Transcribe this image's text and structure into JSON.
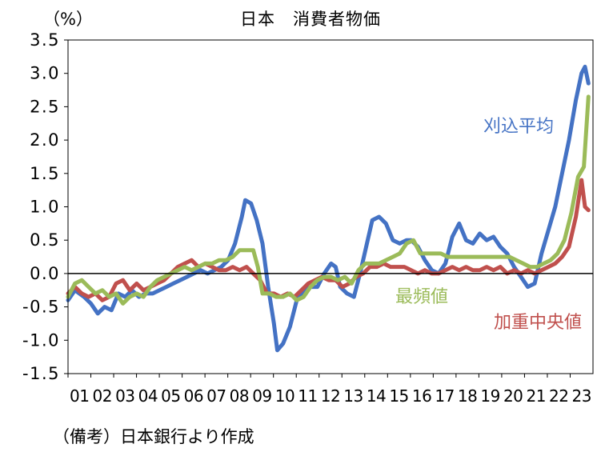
{
  "chart_data": {
    "type": "line",
    "title": "日本　消費者物価",
    "ylabel": "（%）",
    "source_note": "（備考）日本銀行より作成",
    "ylim": [
      -1.5,
      3.5
    ],
    "yticks": [
      "3.5",
      "3.0",
      "2.5",
      "2.0",
      "1.5",
      "1.0",
      "0.5",
      "0.0",
      "-0.5",
      "-1.0",
      "-1.5"
    ],
    "xlim": [
      2001,
      2023.95
    ],
    "xticks": [
      "01",
      "02",
      "03",
      "04",
      "05",
      "06",
      "07",
      "08",
      "09",
      "10",
      "11",
      "12",
      "13",
      "14",
      "15",
      "16",
      "17",
      "18",
      "19",
      "20",
      "21",
      "22",
      "23"
    ],
    "zero_line": true,
    "grid": false,
    "series": [
      {
        "name": "刈込平均",
        "color": "#4472C4",
        "points": [
          [
            2001.0,
            -0.4
          ],
          [
            2001.3,
            -0.25
          ],
          [
            2001.7,
            -0.35
          ],
          [
            2002.0,
            -0.45
          ],
          [
            2002.3,
            -0.6
          ],
          [
            2002.6,
            -0.5
          ],
          [
            2002.9,
            -0.55
          ],
          [
            2003.2,
            -0.3
          ],
          [
            2003.5,
            -0.35
          ],
          [
            2003.8,
            -0.25
          ],
          [
            2004.1,
            -0.35
          ],
          [
            2004.4,
            -0.3
          ],
          [
            2004.7,
            -0.3
          ],
          [
            2005.0,
            -0.25
          ],
          [
            2005.3,
            -0.2
          ],
          [
            2005.6,
            -0.15
          ],
          [
            2005.9,
            -0.1
          ],
          [
            2006.2,
            -0.05
          ],
          [
            2006.5,
            0.0
          ],
          [
            2006.8,
            0.05
          ],
          [
            2007.1,
            0.0
          ],
          [
            2007.4,
            0.05
          ],
          [
            2007.7,
            0.1
          ],
          [
            2008.0,
            0.2
          ],
          [
            2008.3,
            0.45
          ],
          [
            2008.6,
            0.85
          ],
          [
            2008.75,
            1.1
          ],
          [
            2009.0,
            1.05
          ],
          [
            2009.25,
            0.8
          ],
          [
            2009.5,
            0.45
          ],
          [
            2009.75,
            -0.2
          ],
          [
            2010.0,
            -0.75
          ],
          [
            2010.15,
            -1.15
          ],
          [
            2010.4,
            -1.05
          ],
          [
            2010.7,
            -0.8
          ],
          [
            2011.0,
            -0.4
          ],
          [
            2011.3,
            -0.25
          ],
          [
            2011.6,
            -0.2
          ],
          [
            2011.9,
            -0.2
          ],
          [
            2012.2,
            0.0
          ],
          [
            2012.5,
            0.15
          ],
          [
            2012.7,
            0.1
          ],
          [
            2012.9,
            -0.2
          ],
          [
            2013.2,
            -0.3
          ],
          [
            2013.5,
            -0.35
          ],
          [
            2013.8,
            0.05
          ],
          [
            2014.0,
            0.35
          ],
          [
            2014.3,
            0.8
          ],
          [
            2014.6,
            0.85
          ],
          [
            2014.9,
            0.75
          ],
          [
            2015.2,
            0.5
          ],
          [
            2015.5,
            0.45
          ],
          [
            2015.8,
            0.5
          ],
          [
            2016.0,
            0.5
          ],
          [
            2016.3,
            0.4
          ],
          [
            2016.6,
            0.2
          ],
          [
            2016.9,
            0.05
          ],
          [
            2017.2,
            0.0
          ],
          [
            2017.5,
            0.15
          ],
          [
            2017.8,
            0.55
          ],
          [
            2018.1,
            0.75
          ],
          [
            2018.4,
            0.5
          ],
          [
            2018.7,
            0.45
          ],
          [
            2019.0,
            0.6
          ],
          [
            2019.3,
            0.5
          ],
          [
            2019.6,
            0.55
          ],
          [
            2019.9,
            0.4
          ],
          [
            2020.2,
            0.3
          ],
          [
            2020.5,
            0.1
          ],
          [
            2020.8,
            -0.05
          ],
          [
            2021.1,
            -0.2
          ],
          [
            2021.4,
            -0.15
          ],
          [
            2021.7,
            0.3
          ],
          [
            2022.0,
            0.65
          ],
          [
            2022.3,
            1.0
          ],
          [
            2022.6,
            1.5
          ],
          [
            2022.9,
            2.0
          ],
          [
            2023.2,
            2.6
          ],
          [
            2023.45,
            3.0
          ],
          [
            2023.6,
            3.1
          ],
          [
            2023.75,
            2.85
          ]
        ]
      },
      {
        "name": "最頻値",
        "color": "#9BBB59",
        "points": [
          [
            2001.0,
            -0.35
          ],
          [
            2001.3,
            -0.15
          ],
          [
            2001.6,
            -0.1
          ],
          [
            2001.9,
            -0.2
          ],
          [
            2002.2,
            -0.3
          ],
          [
            2002.5,
            -0.25
          ],
          [
            2002.8,
            -0.35
          ],
          [
            2003.1,
            -0.3
          ],
          [
            2003.4,
            -0.45
          ],
          [
            2003.7,
            -0.35
          ],
          [
            2004.0,
            -0.3
          ],
          [
            2004.3,
            -0.35
          ],
          [
            2004.6,
            -0.2
          ],
          [
            2004.9,
            -0.1
          ],
          [
            2005.2,
            -0.05
          ],
          [
            2005.5,
            0.0
          ],
          [
            2005.8,
            0.05
          ],
          [
            2006.1,
            0.1
          ],
          [
            2006.4,
            0.05
          ],
          [
            2006.7,
            0.1
          ],
          [
            2007.0,
            0.15
          ],
          [
            2007.3,
            0.15
          ],
          [
            2007.6,
            0.2
          ],
          [
            2007.9,
            0.2
          ],
          [
            2008.2,
            0.25
          ],
          [
            2008.5,
            0.35
          ],
          [
            2008.8,
            0.35
          ],
          [
            2009.1,
            0.35
          ],
          [
            2009.3,
            0.1
          ],
          [
            2009.5,
            -0.3
          ],
          [
            2009.8,
            -0.3
          ],
          [
            2010.1,
            -0.35
          ],
          [
            2010.4,
            -0.35
          ],
          [
            2010.7,
            -0.3
          ],
          [
            2011.0,
            -0.4
          ],
          [
            2011.3,
            -0.35
          ],
          [
            2011.6,
            -0.2
          ],
          [
            2011.9,
            -0.1
          ],
          [
            2012.2,
            -0.05
          ],
          [
            2012.5,
            -0.05
          ],
          [
            2012.8,
            -0.1
          ],
          [
            2013.1,
            -0.05
          ],
          [
            2013.4,
            -0.15
          ],
          [
            2013.7,
            0.05
          ],
          [
            2014.0,
            0.15
          ],
          [
            2014.3,
            0.15
          ],
          [
            2014.6,
            0.15
          ],
          [
            2014.9,
            0.2
          ],
          [
            2015.2,
            0.25
          ],
          [
            2015.5,
            0.3
          ],
          [
            2015.8,
            0.45
          ],
          [
            2016.1,
            0.5
          ],
          [
            2016.4,
            0.3
          ],
          [
            2016.7,
            0.3
          ],
          [
            2017.0,
            0.3
          ],
          [
            2017.3,
            0.3
          ],
          [
            2017.6,
            0.25
          ],
          [
            2017.9,
            0.25
          ],
          [
            2018.2,
            0.25
          ],
          [
            2018.5,
            0.25
          ],
          [
            2018.8,
            0.25
          ],
          [
            2019.1,
            0.25
          ],
          [
            2019.4,
            0.25
          ],
          [
            2019.7,
            0.25
          ],
          [
            2020.0,
            0.25
          ],
          [
            2020.3,
            0.25
          ],
          [
            2020.6,
            0.2
          ],
          [
            2020.9,
            0.15
          ],
          [
            2021.2,
            0.1
          ],
          [
            2021.5,
            0.1
          ],
          [
            2021.8,
            0.15
          ],
          [
            2022.1,
            0.2
          ],
          [
            2022.4,
            0.3
          ],
          [
            2022.7,
            0.5
          ],
          [
            2023.0,
            0.9
          ],
          [
            2023.3,
            1.45
          ],
          [
            2023.55,
            1.6
          ],
          [
            2023.75,
            2.65
          ]
        ]
      },
      {
        "name": "加重中央値",
        "color": "#C0504D",
        "points": [
          [
            2001.0,
            -0.3
          ],
          [
            2001.3,
            -0.2
          ],
          [
            2001.6,
            -0.3
          ],
          [
            2001.9,
            -0.35
          ],
          [
            2002.2,
            -0.3
          ],
          [
            2002.5,
            -0.4
          ],
          [
            2002.8,
            -0.35
          ],
          [
            2003.1,
            -0.15
          ],
          [
            2003.4,
            -0.1
          ],
          [
            2003.7,
            -0.25
          ],
          [
            2004.0,
            -0.15
          ],
          [
            2004.3,
            -0.25
          ],
          [
            2004.6,
            -0.2
          ],
          [
            2004.9,
            -0.15
          ],
          [
            2005.2,
            -0.1
          ],
          [
            2005.5,
            0.0
          ],
          [
            2005.8,
            0.1
          ],
          [
            2006.1,
            0.15
          ],
          [
            2006.4,
            0.2
          ],
          [
            2006.7,
            0.1
          ],
          [
            2007.0,
            0.15
          ],
          [
            2007.3,
            0.1
          ],
          [
            2007.6,
            0.05
          ],
          [
            2007.9,
            0.05
          ],
          [
            2008.2,
            0.1
          ],
          [
            2008.5,
            0.05
          ],
          [
            2008.8,
            0.1
          ],
          [
            2009.1,
            0.0
          ],
          [
            2009.4,
            -0.1
          ],
          [
            2009.7,
            -0.3
          ],
          [
            2010.0,
            -0.3
          ],
          [
            2010.3,
            -0.35
          ],
          [
            2010.6,
            -0.3
          ],
          [
            2010.9,
            -0.35
          ],
          [
            2011.2,
            -0.25
          ],
          [
            2011.5,
            -0.15
          ],
          [
            2011.8,
            -0.1
          ],
          [
            2012.1,
            -0.05
          ],
          [
            2012.4,
            -0.1
          ],
          [
            2012.7,
            -0.1
          ],
          [
            2013.0,
            -0.2
          ],
          [
            2013.3,
            -0.15
          ],
          [
            2013.6,
            -0.05
          ],
          [
            2013.9,
            0.0
          ],
          [
            2014.2,
            0.1
          ],
          [
            2014.5,
            0.1
          ],
          [
            2014.8,
            0.15
          ],
          [
            2015.1,
            0.1
          ],
          [
            2015.4,
            0.1
          ],
          [
            2015.7,
            0.1
          ],
          [
            2016.0,
            0.05
          ],
          [
            2016.3,
            0.0
          ],
          [
            2016.6,
            0.05
          ],
          [
            2016.9,
            0.0
          ],
          [
            2017.2,
            0.0
          ],
          [
            2017.5,
            0.05
          ],
          [
            2017.8,
            0.1
          ],
          [
            2018.1,
            0.05
          ],
          [
            2018.4,
            0.1
          ],
          [
            2018.7,
            0.05
          ],
          [
            2019.0,
            0.05
          ],
          [
            2019.3,
            0.1
          ],
          [
            2019.6,
            0.05
          ],
          [
            2019.9,
            0.1
          ],
          [
            2020.2,
            0.0
          ],
          [
            2020.5,
            0.05
          ],
          [
            2020.8,
            0.0
          ],
          [
            2021.1,
            0.05
          ],
          [
            2021.4,
            0.0
          ],
          [
            2021.7,
            0.05
          ],
          [
            2022.0,
            0.1
          ],
          [
            2022.3,
            0.15
          ],
          [
            2022.6,
            0.25
          ],
          [
            2022.9,
            0.4
          ],
          [
            2023.2,
            0.85
          ],
          [
            2023.45,
            1.4
          ],
          [
            2023.6,
            1.0
          ],
          [
            2023.75,
            0.95
          ]
        ]
      }
    ],
    "series_labels": [
      "刈込平均",
      "最頻値",
      "加重中央値"
    ]
  }
}
